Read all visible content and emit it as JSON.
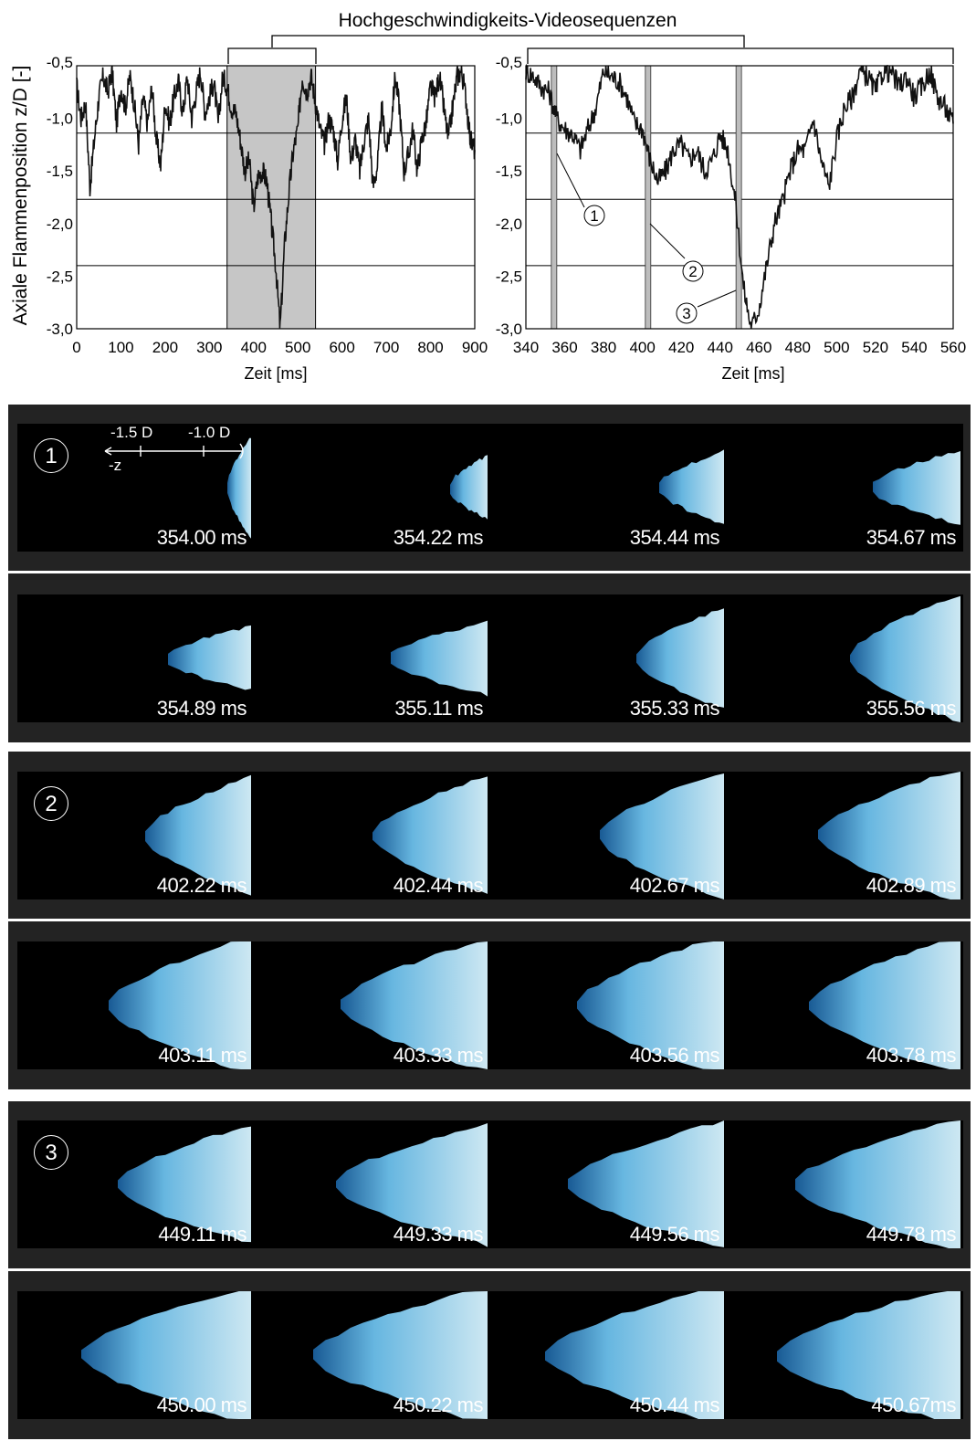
{
  "figure": {
    "top_title": "Hochgeschwindigkeits-Videosequenzen",
    "ylabel": "Axiale Flammenposition z/D [-]"
  },
  "chart_data": [
    {
      "type": "line",
      "xlabel": "Zeit [ms]",
      "xlim": [
        0,
        900
      ],
      "ylim": [
        -3.0,
        -0.5
      ],
      "xticks": [
        "0",
        "100",
        "200",
        "300",
        "400",
        "500",
        "600",
        "700",
        "800",
        "900"
      ],
      "yticks": [
        "-0,5",
        "-1,0",
        "-1,5",
        "-2,0",
        "-2,5",
        "-3,0"
      ],
      "grid_y": [
        -1.14,
        -1.77,
        -2.4
      ],
      "highlight": [
        340,
        540
      ],
      "x": [
        0,
        10,
        20,
        30,
        40,
        50,
        60,
        70,
        80,
        90,
        100,
        110,
        120,
        130,
        140,
        150,
        160,
        170,
        180,
        190,
        200,
        210,
        220,
        230,
        240,
        250,
        260,
        270,
        280,
        290,
        300,
        310,
        320,
        330,
        340,
        350,
        360,
        370,
        380,
        390,
        400,
        410,
        420,
        430,
        440,
        450,
        460,
        470,
        480,
        490,
        500,
        510,
        520,
        530,
        540,
        550,
        560,
        570,
        580,
        590,
        600,
        610,
        620,
        630,
        640,
        650,
        660,
        670,
        680,
        690,
        700,
        710,
        720,
        730,
        740,
        750,
        760,
        770,
        780,
        790,
        800,
        810,
        820,
        830,
        840,
        850,
        860,
        870,
        880,
        890,
        900
      ],
      "y": [
        -0.7,
        -1.0,
        -0.85,
        -1.65,
        -1.2,
        -0.8,
        -0.6,
        -0.75,
        -0.55,
        -1.05,
        -0.7,
        -0.9,
        -0.6,
        -0.85,
        -1.25,
        -0.8,
        -1.05,
        -0.7,
        -1.2,
        -1.45,
        -0.85,
        -1.05,
        -0.8,
        -0.65,
        -0.95,
        -0.6,
        -1.0,
        -0.75,
        -0.55,
        -0.95,
        -0.8,
        -0.65,
        -1.05,
        -0.6,
        -0.7,
        -0.9,
        -0.95,
        -1.2,
        -1.5,
        -1.4,
        -1.85,
        -1.55,
        -1.5,
        -1.6,
        -2.0,
        -2.4,
        -3.0,
        -2.2,
        -1.7,
        -1.3,
        -1.1,
        -0.6,
        -0.75,
        -0.6,
        -0.85,
        -1.1,
        -1.25,
        -1.0,
        -1.1,
        -1.4,
        -1.0,
        -0.8,
        -1.4,
        -1.2,
        -1.5,
        -1.2,
        -1.0,
        -1.65,
        -1.45,
        -0.9,
        -1.3,
        -1.1,
        -0.6,
        -0.9,
        -1.5,
        -1.35,
        -1.1,
        -1.5,
        -1.2,
        -1.05,
        -0.7,
        -0.8,
        -0.6,
        -0.9,
        -1.2,
        -0.9,
        -0.6,
        -0.55,
        -0.8,
        -1.2,
        -1.3
      ]
    },
    {
      "type": "line",
      "xlabel": "Zeit [ms]",
      "xlim": [
        340,
        560
      ],
      "ylim": [
        -3.0,
        -0.5
      ],
      "xticks": [
        "340",
        "360",
        "380",
        "400",
        "420",
        "440",
        "460",
        "480",
        "500",
        "520",
        "540",
        "560"
      ],
      "yticks": [
        "-0,5",
        "-1,0",
        "-1,5",
        "-2,0",
        "-2,5",
        "-3,0"
      ],
      "grid_y": [
        -1.14,
        -1.77,
        -2.4
      ],
      "markers": [
        354.5,
        402.9,
        449.6
      ],
      "x": [
        340,
        344,
        348,
        352,
        356,
        360,
        364,
        368,
        372,
        376,
        380,
        384,
        388,
        392,
        396,
        400,
        404,
        408,
        412,
        416,
        420,
        424,
        428,
        432,
        436,
        440,
        444,
        448,
        452,
        456,
        460,
        464,
        468,
        472,
        476,
        480,
        484,
        488,
        492,
        496,
        500,
        504,
        508,
        512,
        516,
        520,
        524,
        528,
        532,
        536,
        540,
        544,
        548,
        552,
        556,
        560
      ],
      "y": [
        -0.55,
        -0.6,
        -0.7,
        -0.75,
        -1.0,
        -1.1,
        -1.15,
        -1.3,
        -1.1,
        -0.9,
        -0.55,
        -0.6,
        -0.65,
        -0.8,
        -1.05,
        -1.1,
        -1.4,
        -1.6,
        -1.5,
        -1.3,
        -1.25,
        -1.4,
        -1.3,
        -1.5,
        -1.4,
        -1.15,
        -1.3,
        -1.8,
        -2.6,
        -3.0,
        -2.8,
        -2.4,
        -2.0,
        -1.8,
        -1.5,
        -1.3,
        -1.3,
        -1.0,
        -1.4,
        -1.65,
        -1.2,
        -0.9,
        -0.8,
        -0.55,
        -0.6,
        -0.75,
        -0.55,
        -0.55,
        -0.7,
        -0.6,
        -0.8,
        -0.7,
        -0.55,
        -0.8,
        -0.9,
        -1.05
      ]
    }
  ],
  "annotations": {
    "c1": "1",
    "c2": "2",
    "c3": "3"
  },
  "sequences": [
    {
      "badge": "1",
      "frames": [
        "354.00 ms",
        "354.22 ms",
        "354.44 ms",
        "354.67 ms"
      ]
    },
    {
      "badge": "",
      "frames": [
        "354.89 ms",
        "355.11 ms",
        "355.33 ms",
        "355.56 ms"
      ]
    },
    {
      "badge": "2",
      "frames": [
        "402.22 ms",
        "402.44 ms",
        "402.67 ms",
        "402.89 ms"
      ]
    },
    {
      "badge": "",
      "frames": [
        "403.11 ms",
        "403.33 ms",
        "403.56 ms",
        "403.78 ms"
      ]
    },
    {
      "badge": "3",
      "frames": [
        "449.11 ms",
        "449.33 ms",
        "449.56 ms",
        "449.78 ms"
      ]
    },
    {
      "badge": "",
      "frames": [
        "450.00 ms",
        "450.22 ms",
        "450.44 ms",
        "450.67ms"
      ]
    }
  ],
  "scale_bar": {
    "m15": "-1.5 D",
    "m10": "-1.0 D",
    "axis": "-z"
  },
  "colors": {
    "flame_core": "#d8f4ff",
    "flame_mid": "#6cc0ec",
    "flame_edge": "#1a5f9c",
    "panel_bg": "#232323"
  }
}
